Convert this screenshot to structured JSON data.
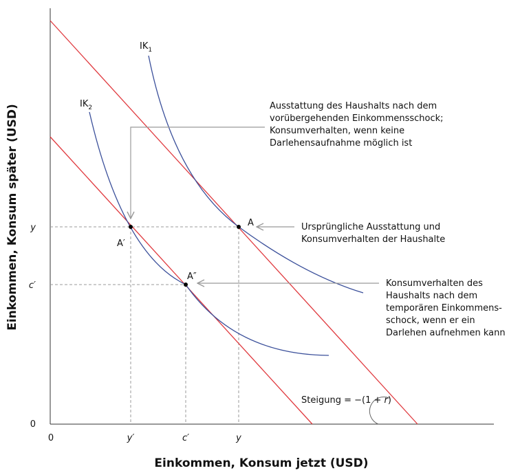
{
  "axes": {
    "x_title": "Einkommen, Konsum jetzt (USD)",
    "y_title": "Einkommen, Konsum später (USD)",
    "x_ticks": [
      "0",
      "y′",
      "c′",
      "y"
    ],
    "y_ticks": [
      "y",
      "c′",
      "0"
    ]
  },
  "curves": {
    "ik1": {
      "label": "IK",
      "sub": "1"
    },
    "ik2": {
      "label": "IK",
      "sub": "2"
    }
  },
  "points": {
    "a": "A",
    "a_prime": "A′",
    "a_dprime": "A″"
  },
  "annotations": {
    "top": [
      "Ausstattung des Haushalts nach dem",
      "vorübergehenden Einkommensschock;",
      "Konsumverhalten, wenn keine",
      "Darlehensaufnahme möglich ist"
    ],
    "middle": [
      "Ursprüngliche Ausstattung und",
      "Konsumverhalten der Haushalte"
    ],
    "bottom": [
      "Konsumverhalten des",
      "Haushalts nach dem",
      "temporären Einkommens-",
      "schock, wenn er ein",
      "Darlehen aufnehmen kann"
    ],
    "slope": {
      "prefix": "Steigung = −(1 + ",
      "r": "r",
      "suffix": ")"
    }
  },
  "colors": {
    "budget_line": "#e0393e",
    "indifference_curve": "#3a4f9a",
    "guide": "#999999",
    "axis": "#333333"
  }
}
